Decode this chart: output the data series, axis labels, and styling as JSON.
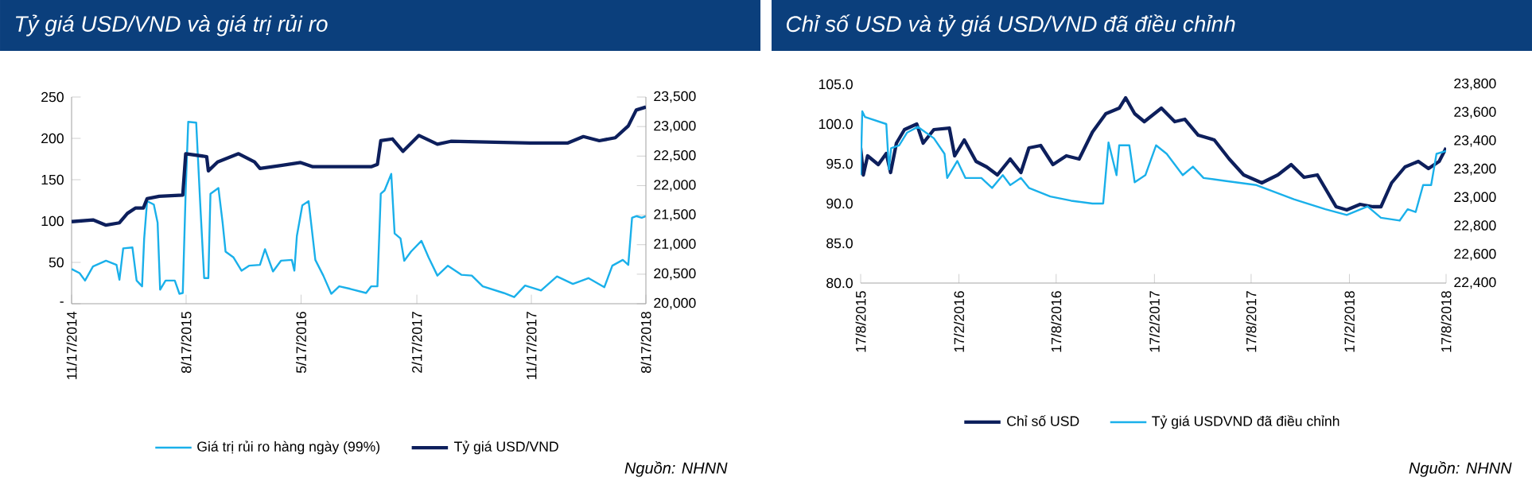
{
  "chart_data": [
    {
      "type": "line",
      "title": "Tỷ giá USD/VND và giá trị rủi ro",
      "legend": "bottom",
      "annotations": [
        "Nguồn: NHNN"
      ],
      "xlim": [
        "2014-11-17",
        "2018-08-17"
      ],
      "xticks": [
        {
          "value": "2014-11-17",
          "label": "11/17/2014"
        },
        {
          "value": "2015-08-17",
          "label": "8/17/2015"
        },
        {
          "value": "2016-05-17",
          "label": "5/17/2016"
        },
        {
          "value": "2017-02-17",
          "label": "2/17/2017"
        },
        {
          "value": "2017-11-17",
          "label": "11/17/2017"
        },
        {
          "value": "2018-08-17",
          "label": "8/17/2018"
        }
      ],
      "ylim": [
        0,
        250
      ],
      "yticks": [
        {
          "value": 0,
          "label": "-"
        },
        50,
        100,
        150,
        200,
        250
      ],
      "y2lim": [
        20000,
        23500
      ],
      "y2ticks": [
        {
          "value": 20000,
          "label": "20,000"
        },
        {
          "value": 20500,
          "label": "20,500"
        },
        {
          "value": 21000,
          "label": "21,000"
        },
        {
          "value": 21500,
          "label": "21,500"
        },
        {
          "value": 22000,
          "label": "22,000"
        },
        {
          "value": 22500,
          "label": "22,500"
        },
        {
          "value": 23000,
          "label": "23,000"
        },
        {
          "value": 23500,
          "label": "23,500"
        }
      ],
      "series": [
        {
          "name": "Giá trị rủi ro hàng ngày (99%)",
          "color": "#1ab0ea",
          "x": [
            "2014-11-17",
            "2014-12-06",
            "2014-12-19",
            "2015-01-07",
            "2015-02-07",
            "2015-03-04",
            "2015-03-11",
            "2015-03-20",
            "2015-04-11",
            "2015-04-21",
            "2015-05-04",
            "2015-05-09",
            "2015-05-16",
            "2015-06-01",
            "2015-06-10",
            "2015-06-16",
            "2015-06-29",
            "2015-07-21",
            "2015-08-01",
            "2015-08-09",
            "2015-08-16",
            "2015-08-22",
            "2015-09-10",
            "2015-09-20",
            "2015-09-29",
            "2015-10-09",
            "2015-10-14",
            "2015-11-02",
            "2015-11-12",
            "2015-11-19",
            "2015-12-08",
            "2015-12-27",
            "2016-01-14",
            "2016-02-09",
            "2016-02-21",
            "2016-03-11",
            "2016-03-30",
            "2016-04-25",
            "2016-05-01",
            "2016-05-07",
            "2016-05-20",
            "2016-06-04",
            "2016-06-20",
            "2016-07-09",
            "2016-07-28",
            "2016-08-16",
            "2016-09-11",
            "2016-10-19",
            "2016-10-31",
            "2016-11-15",
            "2016-11-23",
            "2016-12-02",
            "2016-12-18",
            "2016-12-26",
            "2017-01-09",
            "2017-01-18",
            "2017-02-03",
            "2017-02-28",
            "2017-03-17",
            "2017-04-07",
            "2017-05-02",
            "2017-06-03",
            "2017-06-28",
            "2017-07-24",
            "2017-09-12",
            "2017-10-07",
            "2017-11-02",
            "2017-12-10",
            "2018-01-17",
            "2018-02-24",
            "2018-04-02",
            "2018-05-10",
            "2018-05-29",
            "2018-06-23",
            "2018-07-06",
            "2018-07-15",
            "2018-07-25",
            "2018-08-07",
            "2018-08-17"
          ],
          "values": [
            42,
            37,
            28,
            45,
            52,
            47,
            29,
            67,
            68,
            28,
            21,
            79,
            124,
            120,
            98,
            17,
            28,
            28,
            12,
            13,
            137,
            220,
            219,
            117,
            31,
            31,
            133,
            140,
            98,
            63,
            56,
            40,
            46,
            47,
            66,
            39,
            52,
            53,
            40,
            82,
            119,
            124,
            53,
            34,
            12,
            21,
            18,
            13,
            21,
            21,
            133,
            137,
            157,
            85,
            79,
            52,
            63,
            76,
            56,
            34,
            46,
            35,
            34,
            21,
            13,
            8,
            22,
            16,
            33,
            24,
            31,
            20,
            46,
            53,
            47,
            104,
            106,
            104,
            106
          ]
        },
        {
          "name": "Tỷ giá USD/VND",
          "color": "#0d1f5c",
          "axis": "y2",
          "x": [
            "2014-11-17",
            "2015-01-07",
            "2015-02-07",
            "2015-03-11",
            "2015-03-30",
            "2015-04-18",
            "2015-05-07",
            "2015-05-16",
            "2015-06-14",
            "2015-08-09",
            "2015-08-16",
            "2015-10-05",
            "2015-10-09",
            "2015-10-31",
            "2015-12-20",
            "2016-01-27",
            "2016-02-09",
            "2016-03-30",
            "2016-05-16",
            "2016-06-14",
            "2016-10-31",
            "2016-11-15",
            "2016-11-23",
            "2016-12-21",
            "2017-01-15",
            "2017-02-22",
            "2017-04-07",
            "2017-05-09",
            "2017-07-11",
            "2017-11-14",
            "2018-02-11",
            "2018-03-21",
            "2018-04-28",
            "2018-06-05",
            "2018-07-06",
            "2018-07-25",
            "2018-08-17"
          ],
          "values": [
            21390,
            21420,
            21330,
            21370,
            21530,
            21620,
            21620,
            21780,
            21820,
            21840,
            22540,
            22490,
            22250,
            22400,
            22540,
            22400,
            22290,
            22340,
            22390,
            22320,
            22320,
            22360,
            22760,
            22790,
            22580,
            22850,
            22700,
            22750,
            22740,
            22720,
            22720,
            22830,
            22760,
            22810,
            23010,
            23280,
            23330
          ]
        }
      ]
    },
    {
      "type": "line",
      "title": "Chỉ số USD và tỷ giá USD/VND đã điều chỉnh",
      "legend": "bottom",
      "annotations": [
        "Nguồn: NHNN"
      ],
      "xlim": [
        "2015-08-17",
        "2018-08-17"
      ],
      "xticks": [
        {
          "value": "2015-08-17",
          "label": "17/8/2015"
        },
        {
          "value": "2016-02-17",
          "label": "17/2/2016"
        },
        {
          "value": "2016-08-17",
          "label": "17/8/2016"
        },
        {
          "value": "2017-02-17",
          "label": "17/2/2017"
        },
        {
          "value": "2017-08-17",
          "label": "17/8/2017"
        },
        {
          "value": "2018-02-17",
          "label": "17/2/2018"
        },
        {
          "value": "2018-08-17",
          "label": "17/8/2018"
        }
      ],
      "ylim": [
        80,
        105
      ],
      "yticks": [
        {
          "value": 80,
          "label": "80.0"
        },
        {
          "value": 85,
          "label": "85.0"
        },
        {
          "value": 90,
          "label": "90.0"
        },
        {
          "value": 95,
          "label": "95.0"
        },
        {
          "value": 100,
          "label": "100.0"
        },
        {
          "value": 105,
          "label": "105.0"
        }
      ],
      "y2lim": [
        22400,
        23800
      ],
      "y2ticks": [
        {
          "value": 22400,
          "label": "22,400"
        },
        {
          "value": 22600,
          "label": "22,600"
        },
        {
          "value": 22800,
          "label": "22,800"
        },
        {
          "value": 23000,
          "label": "23,000"
        },
        {
          "value": 23200,
          "label": "23,200"
        },
        {
          "value": 23400,
          "label": "23,400"
        },
        {
          "value": 23600,
          "label": "23,600"
        },
        {
          "value": 23800,
          "label": "23,800"
        }
      ],
      "series": [
        {
          "name": "Chỉ số USD",
          "color": "#0d1f5c",
          "x": [
            "2015-08-17",
            "2015-08-22",
            "2015-08-30",
            "2015-09-19",
            "2015-10-04",
            "2015-10-12",
            "2015-10-23",
            "2015-11-07",
            "2015-11-30",
            "2015-12-12",
            "2016-01-01",
            "2016-01-30",
            "2016-02-09",
            "2016-02-27",
            "2016-03-20",
            "2016-04-09",
            "2016-04-29",
            "2016-05-23",
            "2016-06-12",
            "2016-06-27",
            "2016-07-19",
            "2016-08-11",
            "2016-09-05",
            "2016-09-29",
            "2016-10-24",
            "2016-11-18",
            "2016-12-13",
            "2016-12-25",
            "2017-01-11",
            "2017-01-29",
            "2017-03-02",
            "2017-03-27",
            "2017-04-15",
            "2017-05-10",
            "2017-06-09",
            "2017-07-07",
            "2017-08-03",
            "2017-09-06",
            "2017-10-06",
            "2017-10-31",
            "2017-11-24",
            "2017-12-19",
            "2018-01-23",
            "2018-02-12",
            "2018-03-09",
            "2018-04-02",
            "2018-04-17",
            "2018-05-07",
            "2018-06-01",
            "2018-06-26",
            "2018-07-15",
            "2018-08-04",
            "2018-08-17"
          ],
          "values": [
            97.0,
            93.6,
            96.0,
            94.9,
            96.3,
            93.9,
            97.6,
            99.3,
            100.0,
            97.6,
            99.3,
            99.5,
            96.0,
            98.0,
            95.3,
            94.6,
            93.6,
            95.6,
            93.9,
            97.0,
            97.3,
            94.9,
            96.0,
            95.6,
            99.0,
            101.3,
            102.0,
            103.3,
            101.3,
            100.3,
            102.0,
            100.3,
            100.6,
            98.6,
            98.0,
            95.6,
            93.6,
            92.6,
            93.6,
            94.9,
            93.3,
            93.6,
            89.6,
            89.2,
            89.9,
            89.6,
            89.6,
            92.6,
            94.6,
            95.3,
            94.4,
            95.3,
            97.0
          ]
        },
        {
          "name": "Tỷ giá USDVND đã điều chỉnh",
          "color": "#1ab0ea",
          "axis": "y2",
          "x": [
            "2015-08-17",
            "2015-08-20",
            "2015-08-25",
            "2015-10-04",
            "2015-10-09",
            "2015-10-13",
            "2015-10-28",
            "2015-11-12",
            "2015-12-02",
            "2016-01-01",
            "2016-01-21",
            "2016-01-26",
            "2016-02-14",
            "2016-02-29",
            "2016-03-30",
            "2016-04-19",
            "2016-05-09",
            "2016-05-23",
            "2016-06-12",
            "2016-06-27",
            "2016-08-06",
            "2016-09-14",
            "2016-10-24",
            "2016-11-13",
            "2016-11-23",
            "2016-12-08",
            "2016-12-13",
            "2017-01-01",
            "2017-01-11",
            "2017-01-31",
            "2017-02-20",
            "2017-03-12",
            "2017-04-11",
            "2017-04-30",
            "2017-05-20",
            "2017-06-29",
            "2017-08-27",
            "2017-11-05",
            "2018-01-03",
            "2018-02-12",
            "2018-03-23",
            "2018-04-17",
            "2018-05-22",
            "2018-06-06",
            "2018-06-21",
            "2018-07-05",
            "2018-07-20",
            "2018-07-30",
            "2018-08-17"
          ],
          "values": [
            23160,
            23610,
            23570,
            23520,
            23200,
            23350,
            23370,
            23460,
            23500,
            23420,
            23310,
            23140,
            23260,
            23140,
            23140,
            23070,
            23160,
            23090,
            23140,
            23070,
            23010,
            22980,
            22960,
            22960,
            23390,
            23160,
            23370,
            23370,
            23110,
            23160,
            23370,
            23310,
            23160,
            23220,
            23140,
            23120,
            23090,
            22990,
            22920,
            22880,
            22940,
            22860,
            22840,
            22920,
            22900,
            23090,
            23090,
            23310,
            23330
          ]
        }
      ]
    }
  ]
}
